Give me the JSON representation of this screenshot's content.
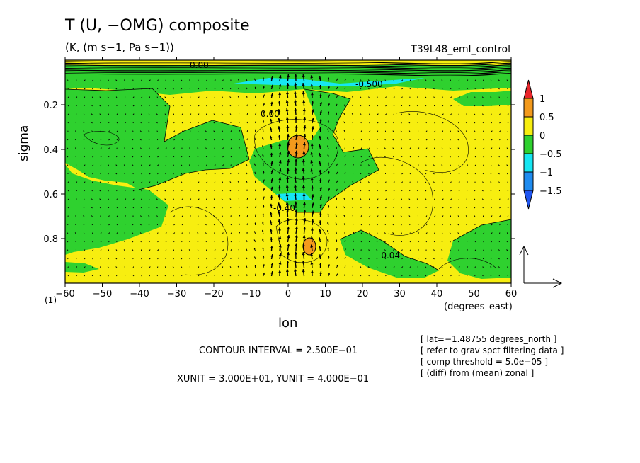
{
  "chart_data": {
    "type": "heatmap",
    "title": "T (U, −OMG) composite",
    "units": "(K, (m s−1, Pa s−1))",
    "run_name": "T39L48_eml_control",
    "xlabel": "lon",
    "xunit": "(degrees_east)",
    "ylabel": "sigma",
    "xlim": [
      -60,
      60
    ],
    "ylim": [
      1,
      0
    ],
    "y_bottom_label": "(1)",
    "x_ticks": [
      -60,
      -50,
      -40,
      -30,
      -20,
      -10,
      0,
      10,
      20,
      30,
      40,
      50,
      60
    ],
    "y_ticks": [
      0.2,
      0.4,
      0.6,
      0.8
    ],
    "colorbar": {
      "levels": [
        "1",
        "0.5",
        "0",
        "−0.5",
        "−1",
        "−1.5"
      ],
      "colors": [
        "#e8262b",
        "#f39a1c",
        "#f7ee10",
        "#2fd12f",
        "#16e6f2",
        "#1f8cf0",
        "#1f55f0"
      ]
    },
    "contour_labels": [
      "0.00",
      "-0.500",
      "0.00",
      "-0.40",
      "-0.04"
    ],
    "footer": {
      "contour_interval": "CONTOUR INTERVAL = 2.500E−01",
      "units_line": "XUNIT = 3.000E+01, YUNIT = 4.000E−01"
    },
    "info_lines": [
      "[ lat=−1.48755 degrees_north ]",
      "[ refer to grav spct filtering data ]",
      "[ comp threshold = 5.0e−05 ]",
      "[ (diff) from (mean) zonal ]"
    ]
  }
}
